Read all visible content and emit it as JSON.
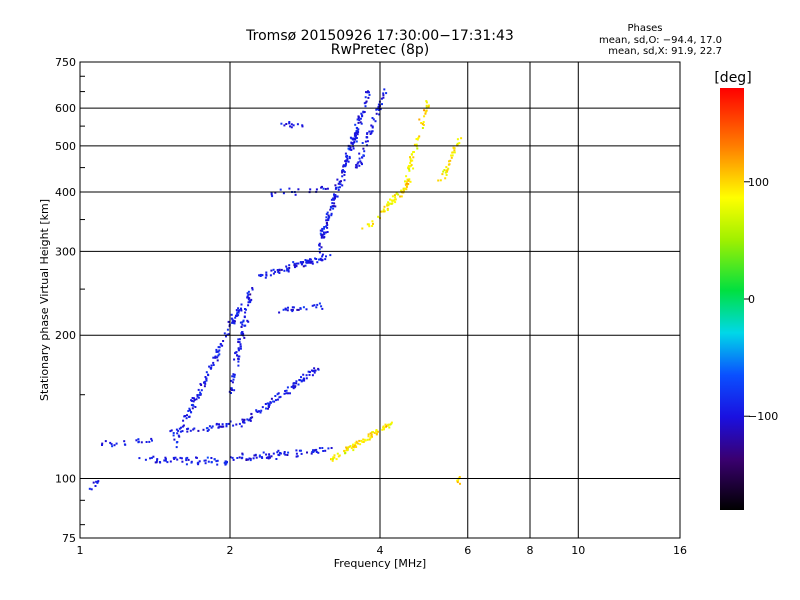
{
  "chart_data": {
    "type": "scatter",
    "title": "Tromsø 20150926 17:30:00−17:31:43",
    "subtitle": "RwPretec (8p)",
    "xlabel": "Frequency [MHz]",
    "ylabel": "Stationary phase Virtual Height [km]",
    "x_scale": "log",
    "y_scale": "log",
    "xlim": [
      1,
      16
    ],
    "ylim": [
      75,
      750
    ],
    "x_ticks": [
      1,
      2,
      4,
      6,
      8,
      10,
      16
    ],
    "x_tick_labels": [
      "1",
      "2",
      "4",
      "6",
      "8",
      "10",
      "16"
    ],
    "y_ticks": [
      75,
      100,
      200,
      300,
      400,
      500,
      600,
      750
    ],
    "y_tick_labels": [
      "75",
      "100",
      "200",
      "300",
      "400",
      "500",
      "600",
      "750"
    ],
    "grid": true,
    "stats": {
      "header": "Phases",
      "line1": "mean, sd,O: −94.4, 17.0",
      "line2": "mean, sd,X:  91.9, 22.7"
    },
    "colorbar": {
      "label": "[deg]",
      "range": [
        -180,
        180
      ],
      "ticks": [
        100,
        0,
        -100
      ],
      "tick_labels": [
        "100",
        "0",
        "−100"
      ]
    },
    "series": [
      {
        "mode": "O",
        "phase_mean": -94.4,
        "phase_sd": 17.0,
        "segments": [
          {
            "x_start": 1.05,
            "x_end": 1.1,
            "h_start": 95,
            "h_end": 100,
            "n": 8
          },
          {
            "x_start": 1.1,
            "x_end": 1.4,
            "h_start": 118,
            "h_end": 120,
            "n": 20
          },
          {
            "x_start": 1.3,
            "x_end": 2.0,
            "h_start": 110,
            "h_end": 108,
            "n": 60
          },
          {
            "x_start": 2.0,
            "x_end": 3.2,
            "h_start": 110,
            "h_end": 115,
            "n": 70
          },
          {
            "x_start": 1.5,
            "x_end": 2.1,
            "h_start": 125,
            "h_end": 130,
            "n": 40
          },
          {
            "x_start": 1.55,
            "x_end": 2.1,
            "h_start": 118,
            "h_end": 230,
            "n": 120
          },
          {
            "x_start": 2.0,
            "x_end": 2.2,
            "h_start": 150,
            "h_end": 250,
            "n": 80
          },
          {
            "x_start": 2.1,
            "x_end": 3.0,
            "h_start": 130,
            "h_end": 170,
            "n": 90
          },
          {
            "x_start": 2.5,
            "x_end": 3.1,
            "h_start": 225,
            "h_end": 232,
            "n": 25
          },
          {
            "x_start": 2.3,
            "x_end": 3.2,
            "h_start": 265,
            "h_end": 295,
            "n": 80
          },
          {
            "x_start": 3.0,
            "x_end": 3.8,
            "h_start": 300,
            "h_end": 650,
            "n": 180
          },
          {
            "x_start": 3.6,
            "x_end": 4.1,
            "h_start": 450,
            "h_end": 650,
            "n": 60
          },
          {
            "x_start": 2.4,
            "x_end": 3.2,
            "h_start": 398,
            "h_end": 405,
            "n": 20
          },
          {
            "x_start": 2.5,
            "x_end": 2.8,
            "h_start": 550,
            "h_end": 555,
            "n": 12
          }
        ]
      },
      {
        "mode": "X",
        "phase_mean": 91.9,
        "phase_sd": 22.7,
        "segments": [
          {
            "x_start": 3.2,
            "x_end": 4.2,
            "h_start": 110,
            "h_end": 130,
            "n": 80
          },
          {
            "x_start": 3.7,
            "x_end": 4.6,
            "h_start": 330,
            "h_end": 420,
            "n": 50
          },
          {
            "x_start": 4.4,
            "x_end": 5.0,
            "h_start": 380,
            "h_end": 620,
            "n": 60
          },
          {
            "x_start": 5.3,
            "x_end": 5.8,
            "h_start": 420,
            "h_end": 520,
            "n": 35
          },
          {
            "x_start": 5.65,
            "x_end": 5.8,
            "h_start": 98,
            "h_end": 99,
            "n": 6
          }
        ]
      }
    ]
  }
}
